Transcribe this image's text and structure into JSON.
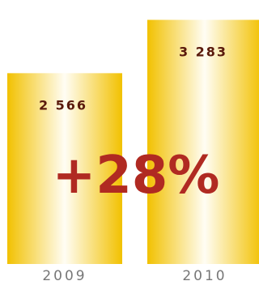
{
  "chart_data": {
    "type": "bar",
    "categories": [
      "2009",
      "2010"
    ],
    "values": [
      2566,
      3283
    ],
    "value_labels": [
      "2 566",
      "3 283"
    ],
    "ylim": [
      0,
      3550
    ],
    "grid": false,
    "annotation": "+28%",
    "colors": {
      "bar_edge": "#f2c100",
      "bar_center": "#fffdf4",
      "value_label": "#5a1a0c",
      "annotation": "#b02a22",
      "tick": "#777777"
    }
  }
}
